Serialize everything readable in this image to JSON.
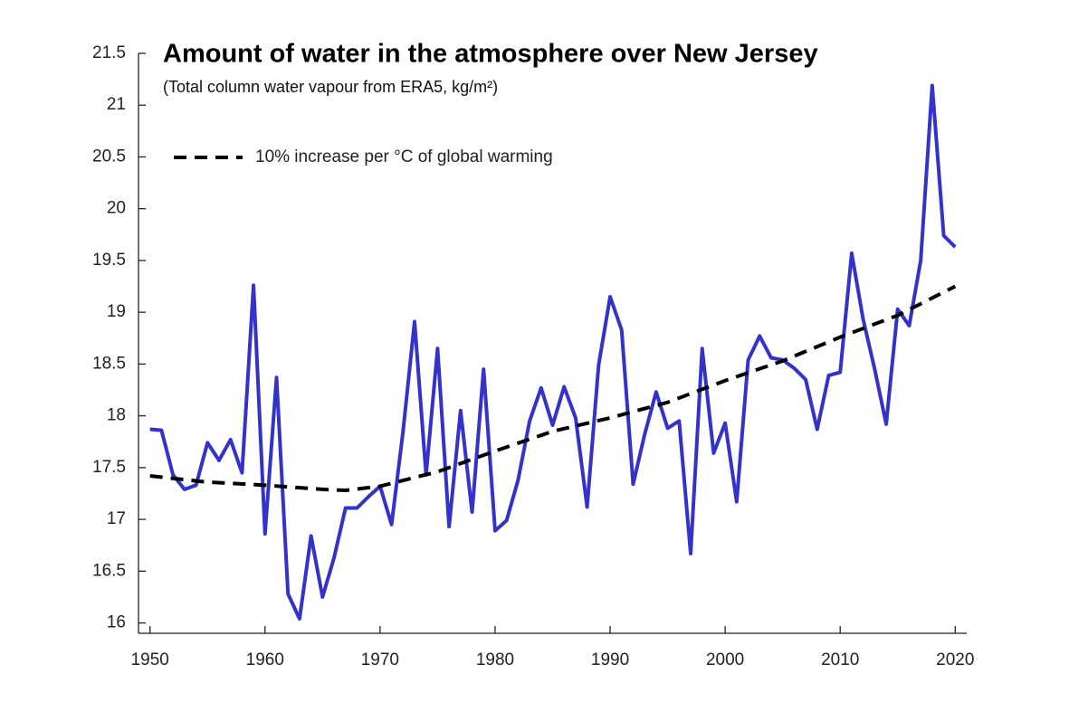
{
  "chart_data": {
    "type": "line",
    "title": "Amount of water in the atmosphere over New Jersey",
    "subtitle": "(Total column water vapour from ERA5, kg/m²)",
    "xlim": [
      1949,
      2021
    ],
    "ylim": [
      15.9,
      21.5
    ],
    "xticks": [
      1950,
      1960,
      1970,
      1980,
      1990,
      2000,
      2010,
      2020
    ],
    "yticks": [
      16,
      16.5,
      17,
      17.5,
      18,
      18.5,
      19,
      19.5,
      20,
      20.5,
      21,
      21.5
    ],
    "legend": "upper left",
    "series": [
      {
        "color": "#3333cc",
        "x": [
          1950,
          1951,
          1952,
          1953,
          1954,
          1955,
          1956,
          1957,
          1958,
          1959,
          1960,
          1961,
          1962,
          1963,
          1964,
          1965,
          1966,
          1967,
          1968,
          1969,
          1970,
          1971,
          1972,
          1973,
          1974,
          1975,
          1976,
          1977,
          1978,
          1979,
          1980,
          1981,
          1982,
          1983,
          1984,
          1985,
          1986,
          1987,
          1988,
          1989,
          1990,
          1991,
          1992,
          1993,
          1994,
          1995,
          1996,
          1997,
          1998,
          1999,
          2000,
          2001,
          2002,
          2003,
          2004,
          2005,
          2006,
          2007,
          2008,
          2009,
          2010,
          2011,
          2012,
          2013,
          2014,
          2015,
          2016,
          2017,
          2018,
          2019,
          2020
        ],
        "values": [
          17.87,
          17.86,
          17.43,
          17.29,
          17.33,
          17.74,
          17.57,
          17.77,
          17.45,
          19.26,
          16.86,
          18.37,
          16.28,
          16.04,
          16.84,
          16.25,
          16.63,
          17.11,
          17.11,
          17.22,
          17.32,
          16.95,
          17.85,
          18.91,
          17.43,
          18.65,
          16.93,
          18.05,
          17.07,
          18.45,
          16.89,
          16.99,
          17.38,
          17.95,
          18.27,
          17.91,
          18.28,
          17.98,
          17.12,
          18.49,
          19.15,
          18.83,
          17.34,
          17.82,
          18.23,
          17.88,
          17.95,
          16.67,
          18.65,
          17.64,
          17.93,
          17.17,
          18.54,
          18.77,
          18.56,
          18.54,
          18.46,
          18.35,
          17.87,
          18.39,
          18.42,
          19.57,
          18.93,
          18.45,
          17.92,
          19.03,
          18.87,
          19.5,
          21.19,
          19.74,
          19.63
        ]
      },
      {
        "name": "10% increase per °C of global warming",
        "color": "#000000",
        "dashed": true,
        "x": [
          1950,
          1955,
          1960,
          1965,
          1967,
          1970,
          1975,
          1980,
          1985,
          1990,
          1995,
          2000,
          2005,
          2010,
          2015,
          2020
        ],
        "values": [
          17.42,
          17.36,
          17.33,
          17.29,
          17.28,
          17.32,
          17.46,
          17.66,
          17.85,
          17.98,
          18.13,
          18.34,
          18.53,
          18.76,
          18.97,
          19.25
        ]
      }
    ]
  }
}
